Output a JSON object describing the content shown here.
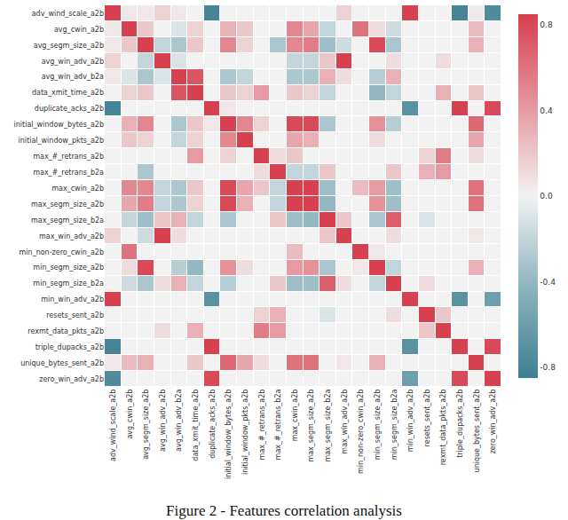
{
  "chart_data": {
    "type": "heatmap",
    "title": "Figure 2 - Features correlation analysis",
    "categories": [
      "adv_wind_scale_a2b",
      "avg_cwin_a2b",
      "avg_segm_size_a2b",
      "avg_win_adv_a2b",
      "avg_win_adv_b2a",
      "data_xmit_time_a2b",
      "duplicate_acks_a2b",
      "initial_window_bytes_a2b",
      "initial_window_pkts_a2b",
      "max_#_retrans_a2b",
      "max_#_retrans_b2a",
      "max_cwin_a2b",
      "max_segm_size_a2b",
      "max_segm_size_b2a",
      "max_win_adv_a2b",
      "min_non-zero_cwin_a2b",
      "min_segm_size_a2b",
      "min_segm_size_b2a",
      "min_win_adv_a2b",
      "resets_sent_a2b",
      "rexmt_data_pkts_a2b",
      "triple_dupacks_a2b",
      "unique_bytes_sent_a2b",
      "zero_win_adv_a2b"
    ],
    "cells": [
      [
        1,
        0.05,
        0.05,
        0.15,
        0.05,
        0,
        -0.8,
        0,
        0,
        0,
        0,
        0,
        0,
        0,
        0.15,
        0,
        0,
        0,
        0.9,
        0,
        0,
        -0.8,
        0.05,
        -0.75
      ],
      [
        0.05,
        1,
        0.2,
        0,
        -0.1,
        0.15,
        0,
        0.3,
        0.2,
        0,
        0,
        0.5,
        0.35,
        -0.2,
        0,
        0.6,
        0.1,
        -0.15,
        0,
        0,
        0,
        0,
        0.25,
        0
      ],
      [
        0.05,
        0.2,
        1,
        -0.2,
        -0.3,
        0.2,
        0,
        0.5,
        0.15,
        0,
        -0.3,
        0.5,
        0.55,
        -0.35,
        -0.15,
        0,
        0.8,
        -0.3,
        0,
        0,
        0,
        0,
        0.3,
        0
      ],
      [
        0.15,
        0,
        -0.2,
        1,
        -0.1,
        0,
        0,
        0,
        0,
        0,
        0,
        -0.2,
        -0.2,
        0.2,
        0.9,
        0,
        0,
        0.1,
        0,
        0,
        0.1,
        0,
        0,
        0
      ],
      [
        0.05,
        -0.1,
        -0.3,
        -0.1,
        1,
        0.75,
        0,
        -0.3,
        -0.2,
        0,
        0,
        -0.3,
        -0.3,
        0.3,
        0.1,
        0,
        -0.25,
        0.3,
        0,
        0,
        0,
        0,
        0,
        0
      ],
      [
        0,
        0.15,
        0.2,
        0,
        0.75,
        1,
        0,
        0.2,
        0.15,
        0.4,
        0,
        0.2,
        0.15,
        -0.2,
        0,
        0,
        -0.4,
        -0.2,
        0,
        0,
        0.3,
        0,
        0.2,
        0
      ],
      [
        -0.8,
        0,
        0,
        0,
        0,
        0,
        1,
        0.05,
        0,
        0,
        0,
        0,
        0,
        0,
        0,
        0,
        0,
        0,
        -0.7,
        0,
        0,
        0.9,
        0,
        0.8
      ],
      [
        0,
        0.3,
        0.5,
        0,
        -0.3,
        0.2,
        0.05,
        1,
        0.5,
        0.15,
        0,
        0.8,
        0.8,
        -0.3,
        0,
        0,
        0.45,
        -0.25,
        0,
        0,
        0,
        0,
        0.65,
        0
      ],
      [
        0,
        0.2,
        0.15,
        0,
        -0.2,
        0.15,
        0,
        0.5,
        1,
        0,
        0,
        0.35,
        0.3,
        0,
        0,
        0,
        0.1,
        0,
        0,
        0,
        0,
        0,
        0.35,
        0
      ],
      [
        0,
        0,
        0,
        0,
        0,
        0.4,
        0,
        0.15,
        0,
        1,
        0.1,
        0.2,
        0,
        0,
        0,
        0,
        0,
        0,
        0,
        0.15,
        0.55,
        0,
        0.1,
        0
      ],
      [
        0,
        0,
        -0.3,
        0,
        0,
        0,
        0,
        0,
        0,
        0.1,
        1,
        -0.2,
        -0.2,
        0.2,
        0,
        0,
        0,
        0.2,
        0,
        0.3,
        0.4,
        0,
        0,
        0
      ],
      [
        0,
        0.5,
        0.5,
        -0.2,
        -0.3,
        0.2,
        0,
        0.8,
        0.35,
        0.2,
        -0.2,
        1,
        0.9,
        -0.35,
        0,
        0.25,
        0.4,
        -0.35,
        0,
        0,
        0,
        0,
        0.6,
        0
      ],
      [
        0,
        0.35,
        0.55,
        -0.2,
        -0.3,
        0.15,
        0,
        0.8,
        0.3,
        0,
        -0.2,
        0.9,
        1,
        -0.4,
        0,
        0,
        0.45,
        -0.35,
        0,
        0,
        0,
        0,
        0.6,
        0
      ],
      [
        0,
        -0.2,
        -0.35,
        0.2,
        0.3,
        -0.2,
        0,
        -0.3,
        0,
        0,
        0.2,
        -0.35,
        -0.4,
        1,
        0.2,
        0,
        -0.3,
        0.7,
        0,
        -0.1,
        0,
        0,
        0,
        0
      ],
      [
        0.15,
        0,
        -0.15,
        0.9,
        0.1,
        0,
        0,
        0,
        0,
        0,
        0,
        0,
        0,
        0.2,
        1,
        0,
        0,
        0.1,
        0,
        0,
        0,
        0,
        0.05,
        0
      ],
      [
        0,
        0.6,
        0,
        0,
        0,
        0,
        0,
        0,
        0,
        0,
        0,
        0.25,
        0,
        0,
        0,
        1,
        0.05,
        0,
        0,
        0,
        0,
        0,
        0,
        0
      ],
      [
        0,
        0.1,
        0.8,
        0,
        -0.25,
        -0.4,
        0,
        0.45,
        0.1,
        0,
        0,
        0.4,
        0.45,
        -0.3,
        0,
        0.05,
        1,
        -0.2,
        0,
        0,
        0,
        0,
        0.3,
        0
      ],
      [
        0,
        -0.15,
        -0.3,
        0.1,
        0.3,
        -0.2,
        0,
        -0.25,
        0,
        0,
        0.2,
        -0.35,
        -0.35,
        0.7,
        0.1,
        0,
        -0.2,
        1,
        0,
        0.1,
        0,
        0,
        0,
        0
      ],
      [
        0.9,
        0,
        0,
        0,
        0,
        0,
        -0.7,
        0,
        0,
        0,
        0,
        0,
        0,
        0,
        0,
        0,
        0,
        0,
        1,
        0,
        0,
        -0.7,
        0,
        -0.6
      ],
      [
        0,
        0,
        0,
        0,
        0,
        0,
        0,
        0,
        0,
        0.15,
        0.3,
        0,
        0,
        -0.1,
        0,
        0,
        0,
        0.1,
        0,
        1,
        0.2,
        0,
        0,
        0
      ],
      [
        0,
        0,
        0,
        0.1,
        0,
        0.3,
        0,
        0,
        0,
        0.55,
        0.4,
        0,
        0,
        0,
        0,
        0,
        0,
        0,
        0,
        0.2,
        1,
        0,
        0,
        0
      ],
      [
        -0.8,
        0,
        0,
        0,
        0,
        0,
        0.9,
        0,
        0,
        0,
        0,
        0,
        0,
        0,
        0,
        0,
        0,
        0,
        -0.7,
        0,
        0,
        1,
        0,
        0.8
      ],
      [
        0.05,
        0.25,
        0.3,
        0,
        0,
        0.2,
        0,
        0.65,
        0.35,
        0.1,
        0,
        0.6,
        0.6,
        0,
        0.05,
        0,
        0.3,
        0,
        0,
        0,
        0,
        0,
        1,
        0
      ],
      [
        -0.75,
        0,
        0,
        0,
        0,
        0,
        0.8,
        0,
        0,
        0,
        0,
        0,
        0,
        0,
        0,
        0,
        0,
        0,
        -0.6,
        0,
        0,
        0.8,
        0,
        1
      ]
    ],
    "zlim": [
      -0.85,
      0.85
    ],
    "zticks": [
      -0.8,
      -0.4,
      {
        "value": 0,
        "label": "0.0"
      },
      0.4,
      0.8
    ]
  }
}
